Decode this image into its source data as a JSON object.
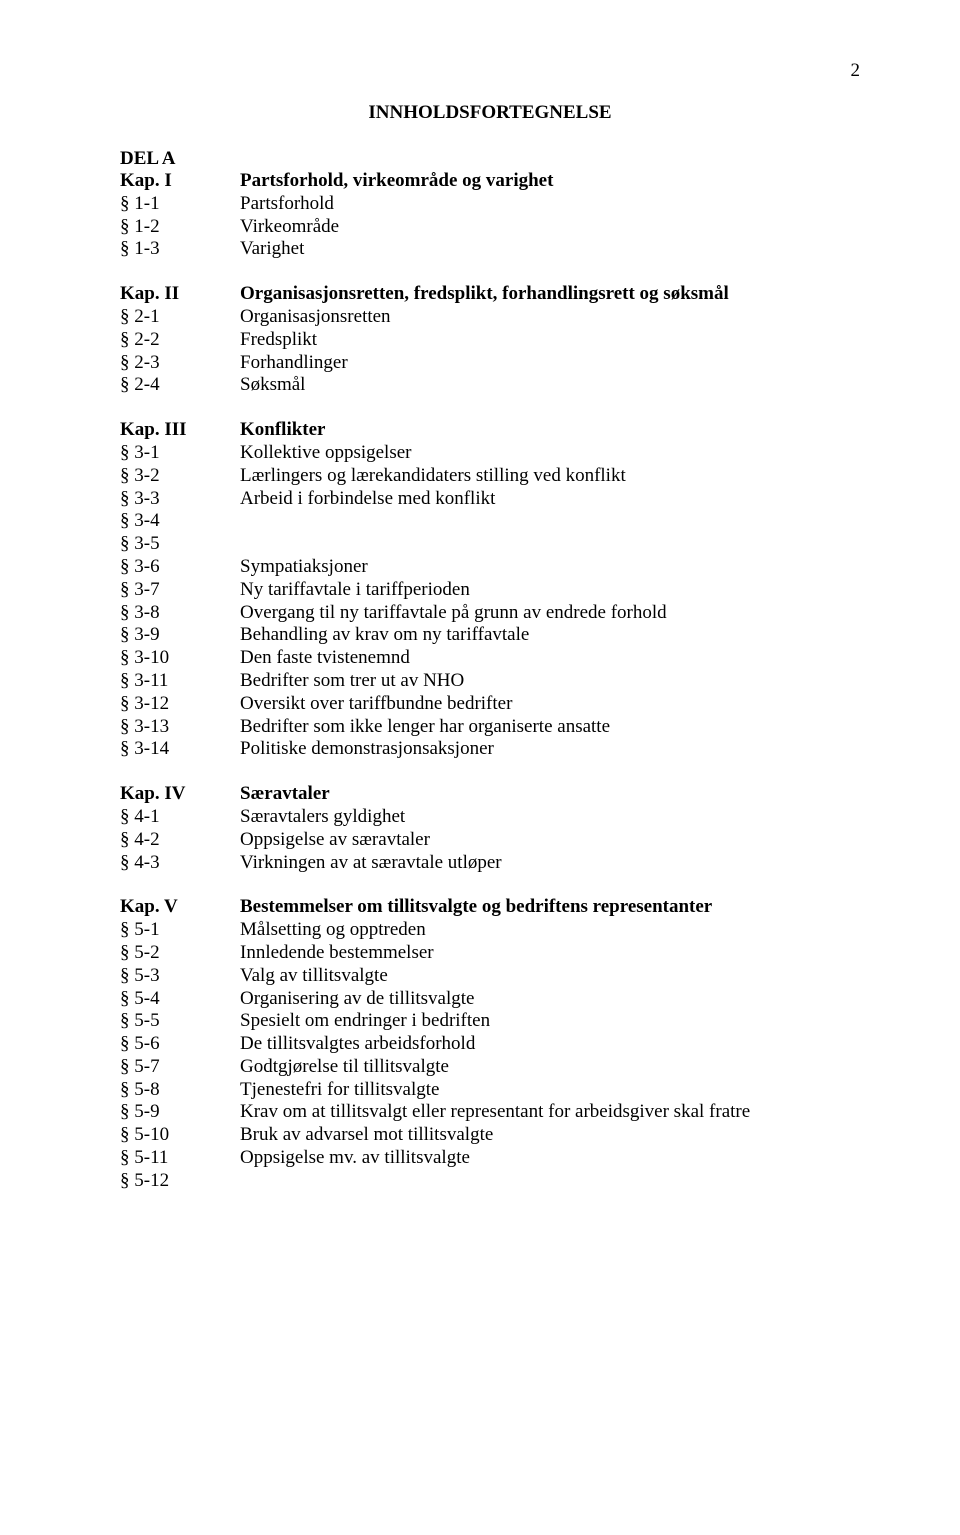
{
  "page_number": "2",
  "toc_title": "INNHOLDSFORTEGNELSE",
  "del_a": "DEL A",
  "chapters": [
    {
      "header_ref": "Kap. I",
      "header_title": "Partsforhold, virkeområde og varighet",
      "items": [
        {
          "ref": "§ 1-1",
          "title": "Partsforhold"
        },
        {
          "ref": "§ 1-2",
          "title": "Virkeområde"
        },
        {
          "ref": "§ 1-3",
          "title": "Varighet"
        }
      ]
    },
    {
      "header_ref": "Kap. II",
      "header_title": "Organisasjonsretten, fredsplikt, forhandlingsrett og søksmål",
      "items": [
        {
          "ref": "§ 2-1",
          "title": "Organisasjonsretten"
        },
        {
          "ref": "§ 2-2",
          "title": "Fredsplikt"
        },
        {
          "ref": "§ 2-3",
          "title": "Forhandlinger"
        },
        {
          "ref": "§ 2-4",
          "title": "Søksmål"
        }
      ]
    },
    {
      "header_ref": "Kap. III",
      "header_title": "Konflikter",
      "items": [
        {
          "ref": "§ 3-1",
          "title": "Kollektive oppsigelser"
        },
        {
          "ref": "§ 3-2",
          "title": "Lærlingers og lærekandidaters stilling ved konflikt"
        },
        {
          "ref": "§ 3-3",
          "title": "Arbeid i forbindelse med konflikt"
        },
        {
          "ref": "§ 3-4",
          "title": ""
        },
        {
          "ref": "§ 3-5",
          "title": ""
        },
        {
          "ref": "§ 3-6",
          "title": "Sympatiaksjoner"
        },
        {
          "ref": "§ 3-7",
          "title": "Ny tariffavtale i tariffperioden"
        },
        {
          "ref": "§ 3-8",
          "title": "Overgang til ny tariffavtale på grunn av endrede forhold"
        },
        {
          "ref": "§ 3-9",
          "title": "Behandling av krav om ny tariffavtale"
        },
        {
          "ref": "§ 3-10",
          "title": "Den faste tvistenemnd"
        },
        {
          "ref": "§ 3-11",
          "title": "Bedrifter som trer ut av NHO"
        },
        {
          "ref": "§ 3-12",
          "title": "Oversikt over tariffbundne bedrifter"
        },
        {
          "ref": "§ 3-13",
          "title": "Bedrifter som ikke lenger har organiserte ansatte"
        },
        {
          "ref": "§ 3-14",
          "title": "Politiske demonstrasjonsaksjoner"
        }
      ]
    },
    {
      "header_ref": "Kap. IV",
      "header_title": "Særavtaler",
      "items": [
        {
          "ref": "§ 4-1",
          "title": "Særavtalers gyldighet"
        },
        {
          "ref": "§ 4-2",
          "title": "Oppsigelse av særavtaler"
        },
        {
          "ref": "§ 4-3",
          "title": "Virkningen av at særavtale utløper"
        }
      ]
    },
    {
      "header_ref": "Kap. V",
      "header_title": "Bestemmelser om tillitsvalgte og bedriftens representanter",
      "items": [
        {
          "ref": "§ 5-1",
          "title": "Målsetting og opptreden"
        },
        {
          "ref": "§ 5-2",
          "title": "Innledende bestemmelser"
        },
        {
          "ref": "§ 5-3",
          "title": "Valg av tillitsvalgte"
        },
        {
          "ref": "§ 5-4",
          "title": "Organisering av de tillitsvalgte"
        },
        {
          "ref": "§ 5-5",
          "title": "Spesielt om endringer i bedriften"
        },
        {
          "ref": "§ 5-6",
          "title": "De tillitsvalgtes arbeidsforhold"
        },
        {
          "ref": "§ 5-7",
          "title": "Godtgjørelse til tillitsvalgte"
        },
        {
          "ref": "§ 5-8",
          "title": "Tjenestefri for tillitsvalgte"
        },
        {
          "ref": "§ 5-9",
          "title": "Krav om at tillitsvalgt eller representant for arbeidsgiver skal fratre"
        },
        {
          "ref": "§ 5-10",
          "title": "Bruk av advarsel mot tillitsvalgte"
        },
        {
          "ref": "§ 5-11",
          "title": "Oppsigelse mv. av tillitsvalgte"
        },
        {
          "ref": "§ 5-12",
          "title": ""
        }
      ]
    }
  ]
}
